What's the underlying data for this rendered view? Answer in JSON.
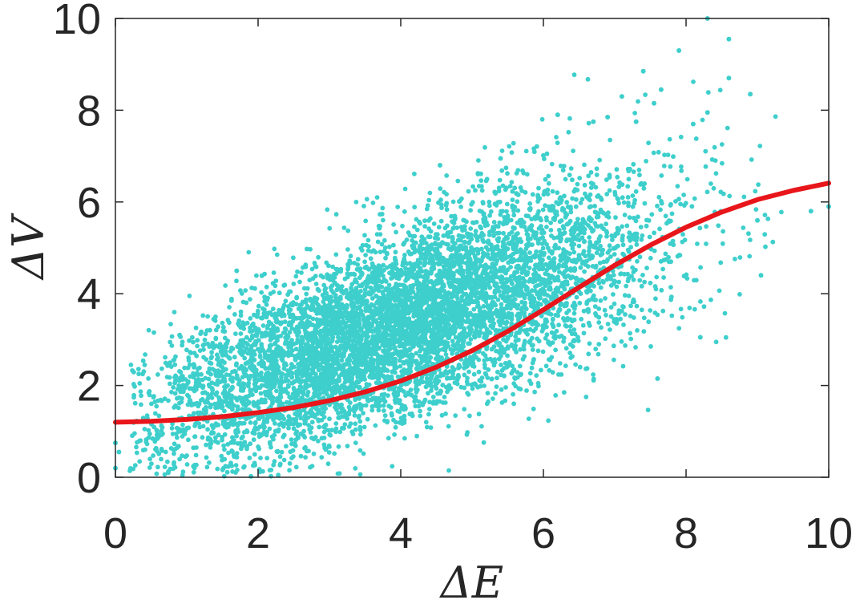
{
  "chart_data": {
    "type": "scatter",
    "title": "",
    "xlabel": "ΔE",
    "ylabel": "ΔV",
    "xlim": [
      0,
      10
    ],
    "ylim": [
      0,
      10
    ],
    "xticks": [
      0,
      2,
      4,
      6,
      8,
      10
    ],
    "yticks": [
      0,
      2,
      4,
      6,
      8,
      10
    ],
    "xtick_labels": [
      "0",
      "2",
      "4",
      "6",
      "8",
      "10"
    ],
    "ytick_labels": [
      "0",
      "2",
      "4",
      "6",
      "8",
      "10"
    ],
    "grid": false,
    "box": true,
    "series": [
      {
        "kind": "scatter",
        "color": "#3ecfcc",
        "point_count_approx": 7000,
        "visible_outliers": [
          {
            "x": 8.3,
            "y": 10.0
          },
          {
            "x": 8.6,
            "y": 9.55
          },
          {
            "x": 7.9,
            "y": 9.3
          },
          {
            "x": 7.4,
            "y": 8.85
          },
          {
            "x": 8.6,
            "y": 8.7
          },
          {
            "x": 7.65,
            "y": 8.45
          },
          {
            "x": 8.9,
            "y": 8.35
          },
          {
            "x": 7.1,
            "y": 8.3
          },
          {
            "x": 7.55,
            "y": 8.15
          },
          {
            "x": 6.2,
            "y": 7.9
          },
          {
            "x": 8.3,
            "y": 7.95
          },
          {
            "x": 6.9,
            "y": 7.85
          },
          {
            "x": 6.7,
            "y": 7.75
          },
          {
            "x": 7.3,
            "y": 7.75
          },
          {
            "x": 8.1,
            "y": 7.7
          },
          {
            "x": 4.55,
            "y": 6.8
          },
          {
            "x": 6.05,
            "y": 7.05
          },
          {
            "x": 5.4,
            "y": 6.95
          },
          {
            "x": 7.6,
            "y": 2.15
          },
          {
            "x": 8.2,
            "y": 3.05
          },
          {
            "x": 9.05,
            "y": 4.4
          },
          {
            "x": 10.0,
            "y": 5.9
          },
          {
            "x": 9.75,
            "y": 5.8
          },
          {
            "x": 9.0,
            "y": 5.6
          },
          {
            "x": 0.9,
            "y": 3.1
          },
          {
            "x": 1.7,
            "y": 4.5
          },
          {
            "x": 1.9,
            "y": 0.02
          },
          {
            "x": 0.0,
            "y": 0.75
          },
          {
            "x": 0.0,
            "y": 0.2
          },
          {
            "x": 0.05,
            "y": 0.55
          }
        ]
      },
      {
        "kind": "line",
        "color": "#e8161b",
        "x": [
          0,
          0.5,
          1,
          1.5,
          2,
          2.5,
          3,
          3.5,
          4,
          4.5,
          5,
          5.5,
          6,
          6.5,
          7,
          7.5,
          8,
          8.5,
          9,
          9.5,
          10
        ],
        "y": [
          1.2,
          1.22,
          1.26,
          1.32,
          1.41,
          1.52,
          1.67,
          1.86,
          2.1,
          2.4,
          2.76,
          3.18,
          3.65,
          4.14,
          4.62,
          5.06,
          5.45,
          5.78,
          6.05,
          6.25,
          6.41
        ]
      }
    ]
  }
}
